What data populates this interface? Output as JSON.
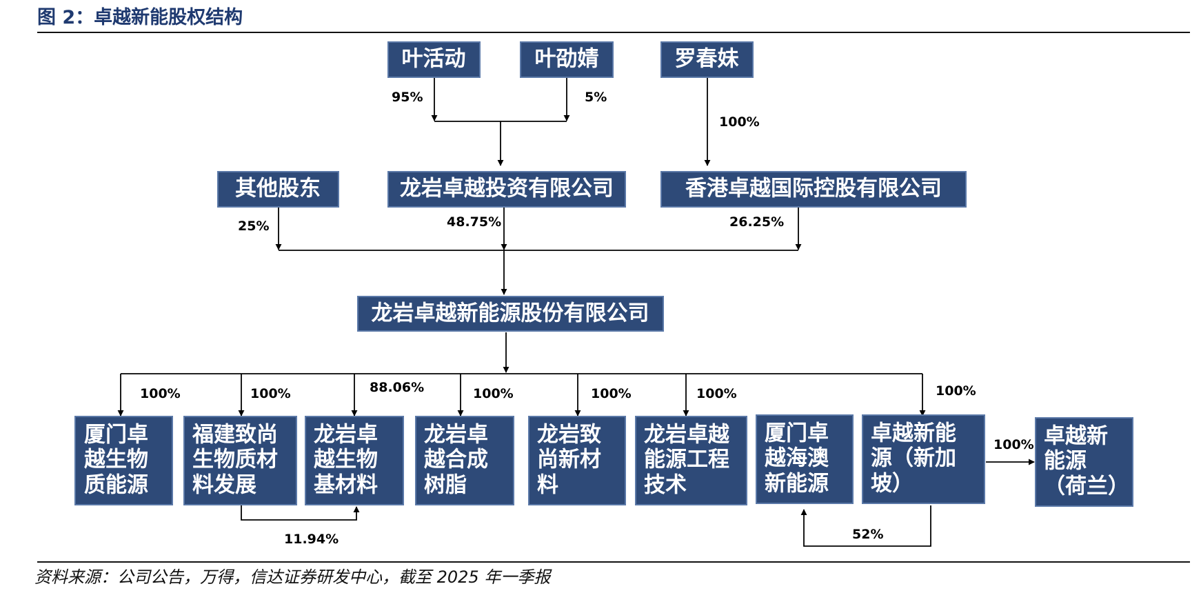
{
  "figure_title": "图 2：卓越新能股权结构",
  "source_note": "资料来源：公司公告，万得，信达证券研发中心，截至 2025 年一季报",
  "nodes": {
    "ye_huodong": "叶活动",
    "ye_shaojing": "叶劭婧",
    "luo_chunmei": "罗春妹",
    "other_holders": "其他股东",
    "longyan_investment": "龙岩卓越投资有限公司",
    "hk_holdings": "香港卓越国际控股有限公司",
    "main_company": "龙岩卓越新能源股份有限公司",
    "xiamen_bio": [
      "厦门卓",
      "越生物",
      "质能源"
    ],
    "fujian_zhishang": [
      "福建致尚",
      "生物质材",
      "料发展"
    ],
    "longyan_bio_material": [
      "龙岩卓",
      "越生物",
      "基材料"
    ],
    "longyan_resin": [
      "龙岩卓",
      "越合成",
      "树脂"
    ],
    "longyan_zhishang": [
      "龙岩致",
      "尚新材",
      "料"
    ],
    "longyan_engineering": [
      "龙岩卓越",
      "能源工程",
      "技术"
    ],
    "xiamen_haiao": [
      "厦门卓",
      "越海澳",
      "新能源"
    ],
    "singapore": [
      "卓越新能",
      "源（新加",
      "坡）"
    ],
    "netherlands": [
      "卓越新",
      "能源",
      "（荷兰）"
    ]
  },
  "percentages": {
    "ye_huodong_to_investment": "95%",
    "ye_shaojing_to_investment": "5%",
    "luo_to_hk": "100%",
    "other_to_main": "25%",
    "investment_to_main": "48.75%",
    "hk_to_main": "26.25%",
    "main_to_xiamen_bio": "100%",
    "main_to_fujian_zhishang": "100%",
    "main_to_longyan_bio_material": "88.06%",
    "main_to_longyan_resin": "100%",
    "main_to_longyan_zhishang": "100%",
    "main_to_longyan_engineering": "100%",
    "main_to_singapore": "100%",
    "singapore_to_netherlands": "100%",
    "fujian_to_longyan_bio_material": "11.94%",
    "singapore_to_xiamen_haiao": "52%"
  }
}
